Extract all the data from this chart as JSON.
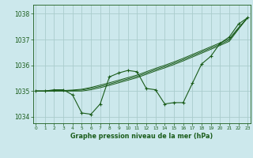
{
  "title": "Graphe pression niveau de la mer (hPa)",
  "bg_color": "#cce8ec",
  "grid_color": "#aacccc",
  "line_color": "#1a5c1a",
  "x_values": [
    0,
    1,
    2,
    3,
    4,
    5,
    6,
    7,
    8,
    9,
    10,
    11,
    12,
    13,
    14,
    15,
    16,
    17,
    18,
    19,
    20,
    21,
    22,
    23
  ],
  "y_main": [
    1035.0,
    1035.0,
    1035.05,
    1035.05,
    1034.85,
    1034.15,
    1034.1,
    1034.5,
    1035.55,
    1035.7,
    1035.8,
    1035.75,
    1035.1,
    1035.05,
    1034.5,
    1034.55,
    1034.55,
    1035.3,
    1036.05,
    1036.35,
    1036.85,
    1037.1,
    1037.6,
    1037.85
  ],
  "y_trend1": [
    1035.0,
    1035.0,
    1035.0,
    1035.0,
    1035.0,
    1035.0,
    1035.05,
    1035.13,
    1035.22,
    1035.32,
    1035.42,
    1035.52,
    1035.65,
    1035.78,
    1035.9,
    1036.03,
    1036.17,
    1036.32,
    1036.47,
    1036.62,
    1036.77,
    1036.93,
    1037.4,
    1037.85
  ],
  "y_trend2": [
    1035.0,
    1035.0,
    1035.01,
    1035.01,
    1035.02,
    1035.04,
    1035.1,
    1035.18,
    1035.27,
    1035.37,
    1035.47,
    1035.57,
    1035.7,
    1035.83,
    1035.95,
    1036.08,
    1036.22,
    1036.37,
    1036.52,
    1036.67,
    1036.82,
    1036.98,
    1037.43,
    1037.85
  ],
  "y_trend3": [
    1035.0,
    1035.0,
    1035.02,
    1035.02,
    1035.04,
    1035.07,
    1035.14,
    1035.23,
    1035.32,
    1035.42,
    1035.52,
    1035.62,
    1035.75,
    1035.88,
    1036.0,
    1036.13,
    1036.27,
    1036.42,
    1036.57,
    1036.72,
    1036.87,
    1037.03,
    1037.46,
    1037.85
  ],
  "ylim": [
    1033.75,
    1038.35
  ],
  "yticks": [
    1034,
    1035,
    1036,
    1037,
    1038
  ],
  "xlim": [
    -0.3,
    23.3
  ],
  "figsize": [
    3.2,
    2.0
  ],
  "dpi": 100
}
